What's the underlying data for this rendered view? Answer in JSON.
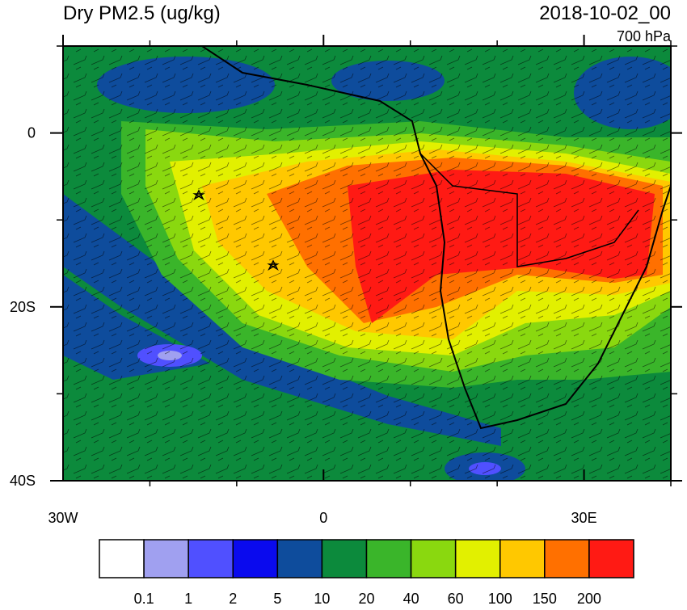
{
  "chart_data": {
    "type": "map",
    "title": "Dry PM2.5 (ug/kg)",
    "date": "2018-10-02_00",
    "level": "700 hPa",
    "xlim": [
      -30,
      40
    ],
    "ylim": [
      -40,
      10
    ],
    "xticks": [
      {
        "value": -30,
        "label": "30W"
      },
      0,
      {
        "value": 30,
        "label": "30E"
      }
    ],
    "yticks": [
      0,
      {
        "value": -20,
        "label": "20S"
      },
      {
        "value": -40,
        "label": "40S"
      }
    ],
    "x_minor_ticks": [
      -20,
      -10,
      10,
      20,
      40
    ],
    "y_minor_ticks": [
      10,
      -10,
      -30
    ],
    "colorbar": {
      "levels": [
        0.1,
        1,
        2,
        5,
        10,
        20,
        40,
        60,
        100,
        150,
        200
      ],
      "colors": [
        "#ffffff",
        "#a0a0f0",
        "#5050ff",
        "#0a0aee",
        "#0e4c9c",
        "#0c8a3c",
        "#3ab52a",
        "#8ad80f",
        "#e2f000",
        "#ffc800",
        "#ff7000",
        "#ff1a14"
      ]
    }
  }
}
